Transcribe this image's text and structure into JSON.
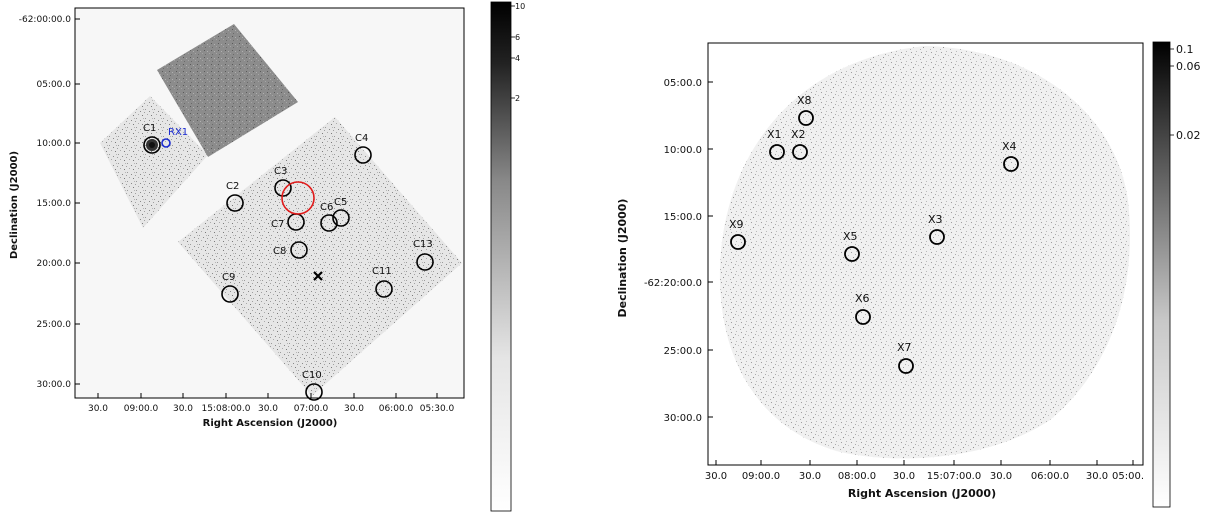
{
  "left_panel": {
    "xlabel": "Right Ascension (J2000)",
    "ylabel": "Declination (J2000)",
    "x_ticks": [
      "30.0",
      "09:00.0",
      "30.0",
      "15:08:00.0",
      "30.0",
      "07:00.0",
      "30.0",
      "06:00.0",
      "05:30.0"
    ],
    "y_ticks": [
      "-62:00:00.0",
      "05:00.0",
      "10:00.0",
      "15:00.0",
      "20:00.0",
      "25:00.0",
      "30:00.0"
    ],
    "colorbar_ticks": [
      "10",
      "6",
      "4",
      "2"
    ],
    "sources": [
      "C1",
      "C2",
      "C3",
      "C4",
      "C5",
      "C6",
      "C7",
      "C8",
      "C9",
      "C10",
      "C11",
      "C13"
    ],
    "rosat_label": "RX1"
  },
  "right_panel": {
    "xlabel": "Right Ascension (J2000)",
    "ylabel": "Declination (J2000)",
    "x_ticks": [
      "30.0",
      "09:00.0",
      "30.0",
      "08:00.0",
      "30.0",
      "15:07:00.0",
      "30.0",
      "06:00.0",
      "30.0",
      "05:00."
    ],
    "y_ticks": [
      "05:00.0",
      "10:00.0",
      "15:00.0",
      "-62:20:00.0",
      "25:00.0",
      "30:00.0"
    ],
    "colorbar_ticks": [
      "0.1",
      "0.06",
      "0.02"
    ],
    "sources": [
      "X1",
      "X2",
      "X3",
      "X4",
      "X5",
      "X6",
      "X7",
      "X8",
      "X9"
    ]
  },
  "colors": {
    "chandra_region": "#e01a1a",
    "rosat_source": "#1a2ad0",
    "source_circle": "#000000"
  }
}
